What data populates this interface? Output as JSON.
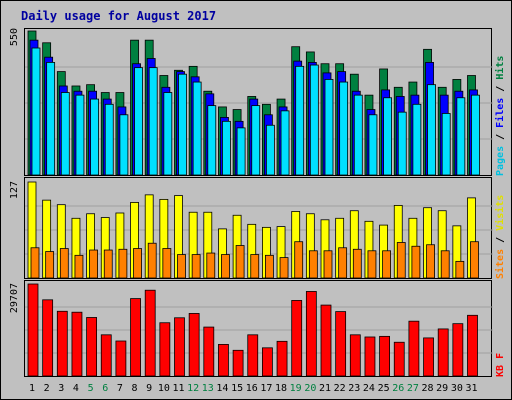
{
  "title": "Daily usage for August 2017",
  "colors": {
    "hits": "#008040",
    "files": "#0000ff",
    "pages": "#00e0ff",
    "sites": "#ffff00",
    "visits": "#ff8000",
    "kbytes": "#ff0000",
    "weekend": "#008040",
    "weekday": "#000000"
  },
  "legends": {
    "top": [
      {
        "text": "Pages",
        "color": "#00c0e0"
      },
      {
        "text": " / ",
        "color": "#000000"
      },
      {
        "text": "Files",
        "color": "#0000ff"
      },
      {
        "text": " / ",
        "color": "#000000"
      },
      {
        "text": "Hits",
        "color": "#008040"
      }
    ],
    "mid": [
      {
        "text": "Sites",
        "color": "#ff8000"
      },
      {
        "text": " / ",
        "color": "#000000"
      },
      {
        "text": "Visits",
        "color": "#e0e000"
      }
    ],
    "bot": [
      {
        "text": "KB",
        "color": "#ff0000"
      },
      {
        "text": "  ",
        "color": "#000000"
      },
      {
        "text": "F",
        "color": "#ff0000"
      }
    ]
  },
  "chart_data": [
    {
      "type": "bar",
      "panel": "top",
      "max_label": "550",
      "ylim": [
        0,
        550
      ],
      "categories": [
        "1",
        "2",
        "3",
        "4",
        "5",
        "6",
        "7",
        "8",
        "9",
        "10",
        "11",
        "12",
        "13",
        "14",
        "15",
        "16",
        "17",
        "18",
        "19",
        "20",
        "21",
        "22",
        "23",
        "24",
        "25",
        "26",
        "27",
        "28",
        "29",
        "30",
        "31"
      ],
      "series": [
        {
          "name": "Hits",
          "values": [
            550,
            505,
            395,
            340,
            345,
            315,
            315,
            515,
            515,
            380,
            400,
            415,
            320,
            260,
            250,
            300,
            270,
            290,
            490,
            470,
            425,
            425,
            385,
            305,
            405,
            335,
            355,
            480,
            335,
            365,
            380
          ]
        },
        {
          "name": "Files",
          "values": [
            515,
            450,
            340,
            320,
            320,
            290,
            260,
            425,
            445,
            335,
            395,
            375,
            310,
            220,
            205,
            290,
            230,
            260,
            435,
            430,
            390,
            395,
            320,
            250,
            325,
            300,
            305,
            430,
            305,
            320,
            325
          ]
        },
        {
          "name": "Pages",
          "values": [
            485,
            430,
            315,
            305,
            290,
            270,
            230,
            410,
            410,
            315,
            385,
            355,
            265,
            205,
            180,
            265,
            190,
            245,
            415,
            420,
            365,
            355,
            305,
            230,
            295,
            240,
            270,
            345,
            235,
            295,
            305
          ]
        }
      ]
    },
    {
      "type": "bar",
      "panel": "mid",
      "max_label": "127",
      "ylim": [
        0,
        127
      ],
      "categories": [
        "1",
        "2",
        "3",
        "4",
        "5",
        "6",
        "7",
        "8",
        "9",
        "10",
        "11",
        "12",
        "13",
        "14",
        "15",
        "16",
        "17",
        "18",
        "19",
        "20",
        "21",
        "22",
        "23",
        "24",
        "25",
        "26",
        "27",
        "28",
        "29",
        "30",
        "31"
      ],
      "series": [
        {
          "name": "Sites",
          "values": [
            40,
            35,
            39,
            30,
            37,
            37,
            38,
            39,
            46,
            39,
            31,
            31,
            33,
            31,
            43,
            31,
            30,
            27,
            48,
            36,
            36,
            40,
            38,
            36,
            36,
            47,
            42,
            44,
            36,
            22,
            48
          ]
        },
        {
          "name": "Visits",
          "values": [
            127,
            103,
            97,
            79,
            85,
            80,
            86,
            100,
            110,
            104,
            109,
            87,
            87,
            65,
            83,
            71,
            67,
            68,
            88,
            85,
            77,
            79,
            89,
            75,
            70,
            96,
            79,
            93,
            89,
            69,
            106
          ]
        }
      ]
    },
    {
      "type": "bar",
      "panel": "bot",
      "max_label": "29707",
      "ylim": [
        0,
        29707
      ],
      "categories": [
        "1",
        "2",
        "3",
        "4",
        "5",
        "6",
        "7",
        "8",
        "9",
        "10",
        "11",
        "12",
        "13",
        "14",
        "15",
        "16",
        "17",
        "18",
        "19",
        "20",
        "21",
        "22",
        "23",
        "24",
        "25",
        "26",
        "27",
        "28",
        "29",
        "30",
        "31"
      ],
      "series": [
        {
          "name": "KBytes",
          "values": [
            29707,
            24600,
            20900,
            20600,
            18900,
            13300,
            11300,
            25000,
            27700,
            17200,
            18800,
            20200,
            15800,
            10200,
            8300,
            13300,
            9100,
            11200,
            24400,
            27300,
            22900,
            20800,
            13300,
            12600,
            12800,
            10900,
            17700,
            12300,
            15200,
            16900,
            19600
          ]
        }
      ]
    }
  ],
  "x_weekend_days": [
    5,
    6,
    12,
    13,
    19,
    20,
    26,
    27
  ]
}
